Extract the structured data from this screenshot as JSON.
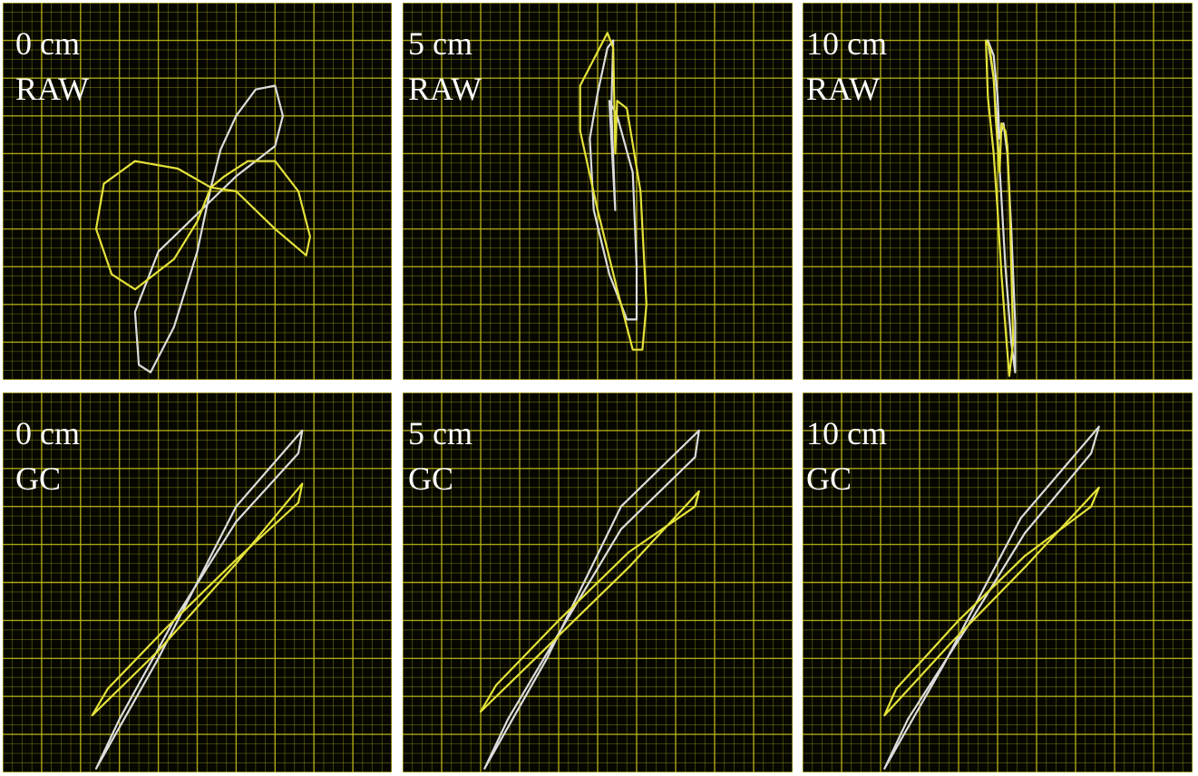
{
  "colors": {
    "background": "#070700",
    "grid": "#c8c219",
    "trace_white": "#dcdcdc",
    "trace_yellow": "#e4e23a",
    "label": "#ffffff"
  },
  "chart_data": [
    {
      "type": "line",
      "distance": "0 cm",
      "mode": "RAW",
      "grid": true,
      "series": [
        {
          "color": "#dcdcdc",
          "values": [
            [
              0.535,
              0.49
            ],
            [
              0.56,
              0.39
            ],
            [
              0.6,
              0.3
            ],
            [
              0.65,
              0.23
            ],
            [
              0.7,
              0.22
            ],
            [
              0.72,
              0.3
            ],
            [
              0.7,
              0.38
            ],
            [
              0.6,
              0.46
            ],
            [
              0.5,
              0.56
            ],
            [
              0.4,
              0.66
            ],
            [
              0.34,
              0.82
            ],
            [
              0.35,
              0.96
            ],
            [
              0.38,
              0.98
            ],
            [
              0.44,
              0.86
            ],
            [
              0.5,
              0.66
            ],
            [
              0.535,
              0.49
            ]
          ]
        },
        {
          "color": "#e4e23a",
          "values": [
            [
              0.535,
              0.49
            ],
            [
              0.45,
              0.44
            ],
            [
              0.34,
              0.42
            ],
            [
              0.26,
              0.48
            ],
            [
              0.24,
              0.6
            ],
            [
              0.28,
              0.72
            ],
            [
              0.34,
              0.76
            ],
            [
              0.44,
              0.68
            ],
            [
              0.5,
              0.58
            ],
            [
              0.535,
              0.49
            ],
            [
              0.6,
              0.5
            ],
            [
              0.7,
              0.6
            ],
            [
              0.78,
              0.67
            ],
            [
              0.79,
              0.62
            ],
            [
              0.76,
              0.5
            ],
            [
              0.7,
              0.42
            ],
            [
              0.63,
              0.42
            ],
            [
              0.57,
              0.46
            ],
            [
              0.535,
              0.49
            ]
          ]
        }
      ]
    },
    {
      "type": "line",
      "distance": "5 cm",
      "mode": "RAW",
      "grid": true,
      "series": [
        {
          "color": "#dcdcdc",
          "values": [
            [
              0.48,
              0.36
            ],
            [
              0.5,
              0.24
            ],
            [
              0.525,
              0.12
            ],
            [
              0.54,
              0.1
            ],
            [
              0.535,
              0.28
            ],
            [
              0.545,
              0.55
            ],
            [
              0.53,
              0.26
            ],
            [
              0.55,
              0.3
            ],
            [
              0.59,
              0.45
            ],
            [
              0.6,
              0.7
            ],
            [
              0.6,
              0.84
            ],
            [
              0.575,
              0.84
            ],
            [
              0.53,
              0.72
            ],
            [
              0.49,
              0.55
            ],
            [
              0.48,
              0.36
            ]
          ]
        },
        {
          "color": "#e4e23a",
          "values": [
            [
              0.54,
              0.12
            ],
            [
              0.525,
              0.08
            ],
            [
              0.49,
              0.15
            ],
            [
              0.455,
              0.22
            ],
            [
              0.455,
              0.34
            ],
            [
              0.5,
              0.55
            ],
            [
              0.55,
              0.76
            ],
            [
              0.59,
              0.92
            ],
            [
              0.615,
              0.92
            ],
            [
              0.625,
              0.8
            ],
            [
              0.61,
              0.5
            ],
            [
              0.575,
              0.28
            ],
            [
              0.55,
              0.26
            ],
            [
              0.545,
              0.4
            ],
            [
              0.54,
              0.12
            ]
          ]
        }
      ]
    },
    {
      "type": "line",
      "distance": "10 cm",
      "mode": "RAW",
      "grid": true,
      "series": [
        {
          "color": "#dcdcdc",
          "values": [
            [
              0.475,
              0.1
            ],
            [
              0.49,
              0.2
            ],
            [
              0.5,
              0.35
            ],
            [
              0.51,
              0.52
            ],
            [
              0.52,
              0.7
            ],
            [
              0.535,
              0.9
            ],
            [
              0.545,
              0.98
            ],
            [
              0.545,
              0.85
            ],
            [
              0.535,
              0.6
            ],
            [
              0.525,
              0.4
            ],
            [
              0.515,
              0.32
            ],
            [
              0.505,
              0.36
            ],
            [
              0.5,
              0.25
            ],
            [
              0.49,
              0.14
            ],
            [
              0.475,
              0.1
            ]
          ]
        },
        {
          "color": "#e4e23a",
          "values": [
            [
              0.47,
              0.1
            ],
            [
              0.475,
              0.25
            ],
            [
              0.49,
              0.4
            ],
            [
              0.5,
              0.55
            ],
            [
              0.51,
              0.72
            ],
            [
              0.52,
              0.86
            ],
            [
              0.53,
              0.99
            ],
            [
              0.54,
              0.9
            ],
            [
              0.535,
              0.7
            ],
            [
              0.53,
              0.5
            ],
            [
              0.525,
              0.38
            ],
            [
              0.52,
              0.34
            ],
            [
              0.51,
              0.32
            ],
            [
              0.505,
              0.45
            ],
            [
              0.495,
              0.3
            ],
            [
              0.49,
              0.2
            ],
            [
              0.48,
              0.12
            ],
            [
              0.47,
              0.1
            ]
          ]
        }
      ]
    },
    {
      "type": "line",
      "distance": "0 cm",
      "mode": "GC",
      "grid": true,
      "series": [
        {
          "color": "#dcdcdc",
          "values": [
            [
              0.24,
              0.99
            ],
            [
              0.4,
              0.7
            ],
            [
              0.6,
              0.3
            ],
            [
              0.77,
              0.1
            ],
            [
              0.76,
              0.16
            ],
            [
              0.6,
              0.34
            ],
            [
              0.44,
              0.6
            ],
            [
              0.3,
              0.86
            ],
            [
              0.24,
              0.99
            ]
          ]
        },
        {
          "color": "#e4e23a",
          "values": [
            [
              0.23,
              0.85
            ],
            [
              0.4,
              0.68
            ],
            [
              0.6,
              0.45
            ],
            [
              0.77,
              0.24
            ],
            [
              0.76,
              0.29
            ],
            [
              0.6,
              0.44
            ],
            [
              0.42,
              0.62
            ],
            [
              0.27,
              0.78
            ],
            [
              0.23,
              0.85
            ]
          ]
        }
      ]
    },
    {
      "type": "line",
      "distance": "5 cm",
      "mode": "GC",
      "grid": true,
      "series": [
        {
          "color": "#dcdcdc",
          "values": [
            [
              0.21,
              0.99
            ],
            [
              0.37,
              0.7
            ],
            [
              0.56,
              0.3
            ],
            [
              0.76,
              0.1
            ],
            [
              0.75,
              0.17
            ],
            [
              0.56,
              0.36
            ],
            [
              0.42,
              0.6
            ],
            [
              0.27,
              0.86
            ],
            [
              0.21,
              0.99
            ]
          ]
        },
        {
          "color": "#e4e23a",
          "values": [
            [
              0.2,
              0.84
            ],
            [
              0.39,
              0.65
            ],
            [
              0.58,
              0.46
            ],
            [
              0.76,
              0.26
            ],
            [
              0.75,
              0.3
            ],
            [
              0.58,
              0.42
            ],
            [
              0.4,
              0.6
            ],
            [
              0.24,
              0.77
            ],
            [
              0.2,
              0.84
            ]
          ]
        }
      ]
    },
    {
      "type": "line",
      "distance": "10 cm",
      "mode": "GC",
      "grid": true,
      "series": [
        {
          "color": "#dcdcdc",
          "values": [
            [
              0.21,
              0.99
            ],
            [
              0.36,
              0.72
            ],
            [
              0.56,
              0.33
            ],
            [
              0.76,
              0.09
            ],
            [
              0.74,
              0.16
            ],
            [
              0.57,
              0.37
            ],
            [
              0.42,
              0.62
            ],
            [
              0.27,
              0.86
            ],
            [
              0.21,
              0.99
            ]
          ]
        },
        {
          "color": "#e4e23a",
          "values": [
            [
              0.21,
              0.85
            ],
            [
              0.38,
              0.66
            ],
            [
              0.57,
              0.46
            ],
            [
              0.76,
              0.25
            ],
            [
              0.74,
              0.3
            ],
            [
              0.57,
              0.43
            ],
            [
              0.4,
              0.6
            ],
            [
              0.24,
              0.78
            ],
            [
              0.21,
              0.85
            ]
          ]
        }
      ]
    }
  ]
}
